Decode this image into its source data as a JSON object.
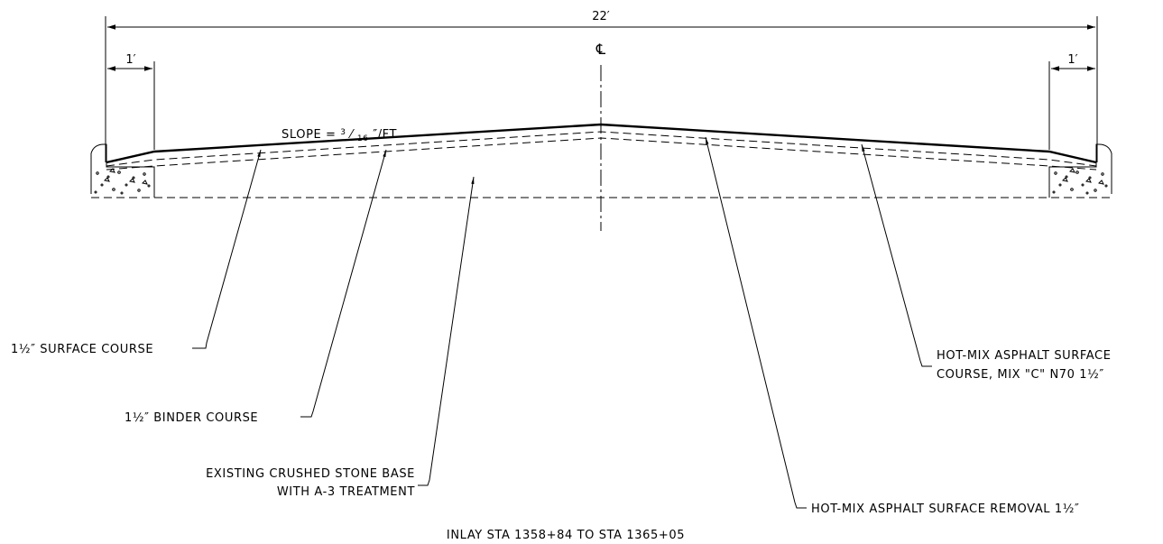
{
  "dimensions": {
    "overall_width": "22′",
    "edge_width_left": "1′",
    "edge_width_right": "1′"
  },
  "centerline_symbol": "℄",
  "slope_label": {
    "prefix": "SLOPE = ",
    "num": "3",
    "den": "16",
    "suffix": "″/FT"
  },
  "callouts": {
    "surface_course": "1½″ SURFACE COURSE",
    "binder_course": "1½″ BINDER COURSE",
    "base_line1": "EXISTING CRUSHED STONE BASE",
    "base_line2": "WITH A-3 TREATMENT",
    "hma_surface_line1": "HOT-MIX ASPHALT SURFACE",
    "hma_surface_line2": "COURSE, MIX \"C\" N70 1½″",
    "hma_removal": "HOT-MIX ASPHALT SURFACE REMOVAL 1½″"
  },
  "caption": "INLAY STA 1358+84 TO STA 1365+05"
}
